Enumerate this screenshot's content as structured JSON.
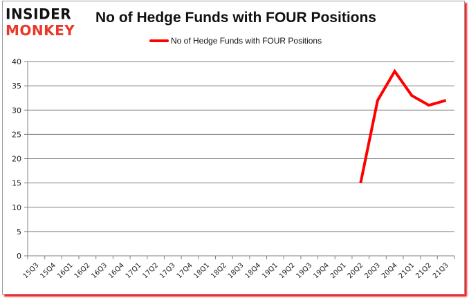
{
  "logo": {
    "line1": "INSIDER",
    "line2": "MONKEY"
  },
  "colors": {
    "series": "#ff0000",
    "grid": "#808080",
    "logo_red": "#e8382b",
    "shadow": "#ff1a1a"
  },
  "chart_data": {
    "type": "line",
    "title": "No of Hedge Funds with FOUR Positions",
    "xlabel": "",
    "ylabel": "",
    "ylim": [
      0,
      40
    ],
    "yticks": [
      0,
      5,
      10,
      15,
      20,
      25,
      30,
      35,
      40
    ],
    "grid": true,
    "legend_position": "top",
    "categories": [
      "15Q3",
      "15Q4",
      "16Q1",
      "16Q2",
      "16Q3",
      "16Q4",
      "17Q1",
      "17Q2",
      "17Q3",
      "17Q4",
      "18Q1",
      "18Q2",
      "18Q3",
      "18Q4",
      "19Q1",
      "19Q2",
      "19Q3",
      "19Q4",
      "20Q1",
      "20Q2",
      "20Q3",
      "20Q4",
      "21Q1",
      "21Q2",
      "21Q3"
    ],
    "series": [
      {
        "name": "No of Hedge Funds with FOUR Positions",
        "values": [
          null,
          null,
          null,
          null,
          null,
          null,
          null,
          null,
          null,
          null,
          null,
          null,
          null,
          null,
          null,
          null,
          null,
          null,
          null,
          15,
          32,
          38,
          33,
          31,
          32
        ]
      }
    ]
  }
}
